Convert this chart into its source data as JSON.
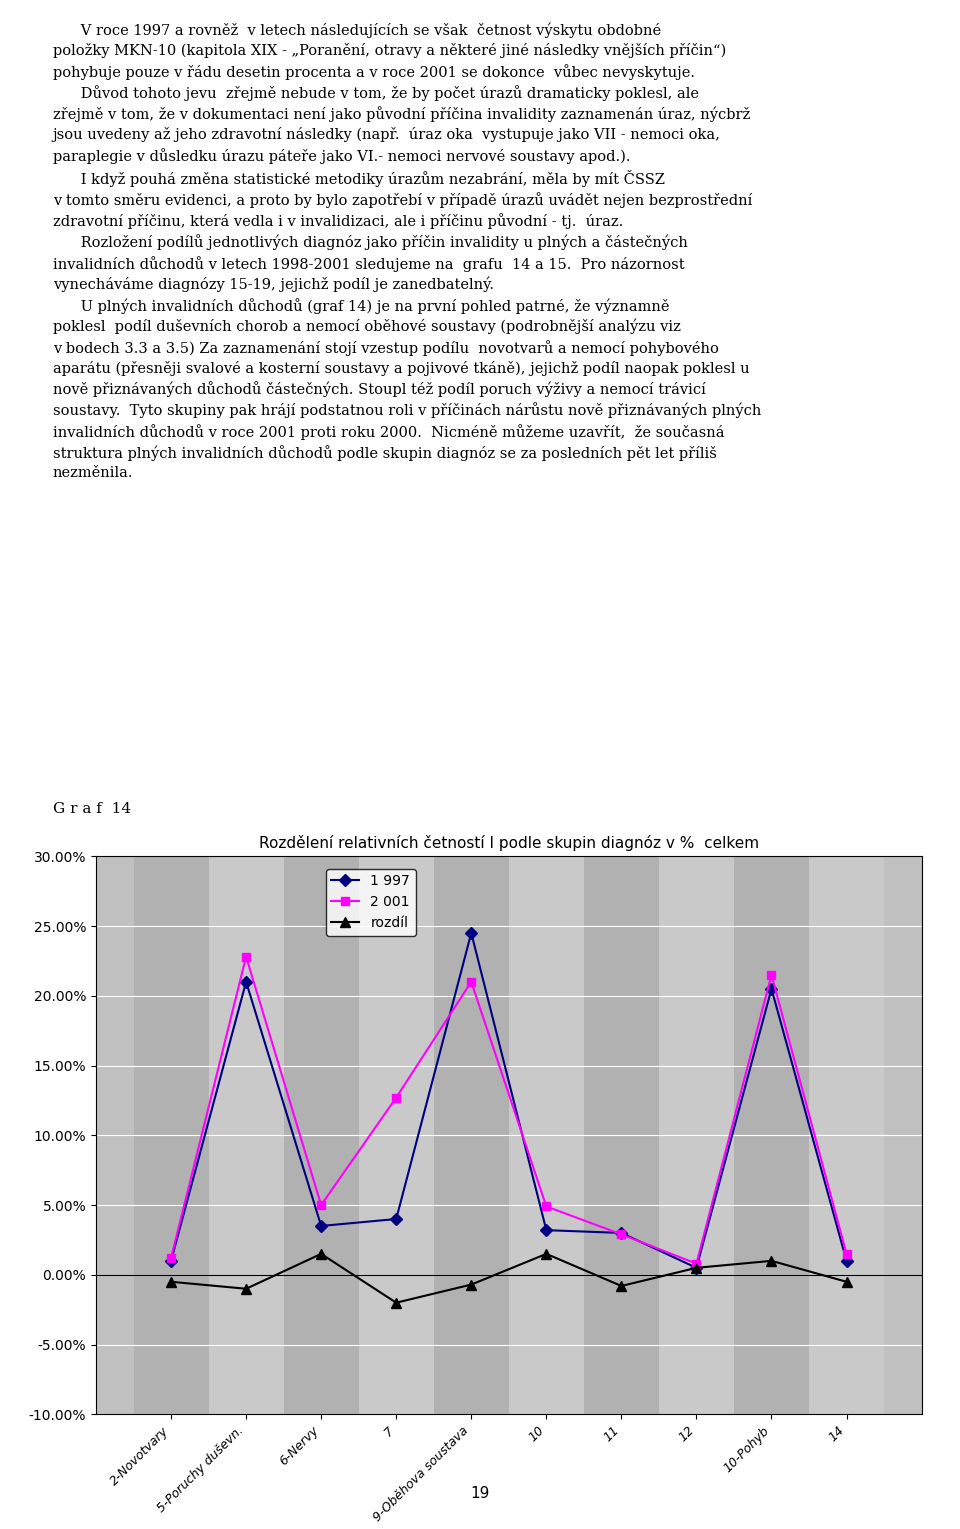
{
  "title": "Rozdělení relativních četností I podle skupin diagnóz v %  celkem",
  "chart_title_fontsize": 11,
  "categories": [
    "2-Novotvary",
    "5-Poruchy duševn.",
    "6-Nervy",
    "7",
    "9-Oběhova soustava",
    "10",
    "11",
    "12",
    "10-Pohyb",
    "14"
  ],
  "series_1997": [
    0.01,
    0.21,
    0.035,
    0.04,
    0.245,
    0.032,
    0.03,
    0.005,
    0.205,
    0.01
  ],
  "series_2001": [
    0.012,
    0.228,
    0.05,
    0.127,
    0.21,
    0.049,
    0.029,
    0.008,
    0.215,
    0.015
  ],
  "series_rozdil": [
    -0.005,
    -0.01,
    0.015,
    -0.02,
    -0.007,
    0.015,
    -0.008,
    0.005,
    0.01,
    -0.005
  ],
  "legend_labels": [
    "1 997",
    "2 001",
    "rozdíl"
  ],
  "color_1997": "#000080",
  "color_2001": "#FF00FF",
  "color_rozdil": "#000000",
  "marker_1997": "D",
  "marker_2001": "s",
  "marker_rozdil": "^",
  "ylim_min": -0.1,
  "ylim_max": 0.3,
  "yticks": [
    -0.1,
    -0.05,
    0.0,
    0.05,
    0.1,
    0.15,
    0.2,
    0.25,
    0.3
  ],
  "background_color": "#C0C0C0",
  "grid_color": "#FFFFFF",
  "text_color": "#000000",
  "page_background": "#FFFFFF",
  "label_text": "G r a f  14",
  "page_number": "19",
  "para1": "     V roce 1997 a rovněž  v letech následujících se však  četnost výskytu obdobné položky MKN-10 (kapitola XIX -",
  "para1b": "„Poranění, otravy a některé jiné následky vnějších příčin“) pohybuje pouze v řádu desetin procenta a v roce 2001 se dokonce  vůbec nevyskytuje.",
  "para2": "     Důvod tohoto jevu  zřejmě nebude v tom, že by počet úrazů dramaticky poklesl, ale zřejmě v tom, že v dokumentaci není jako původní příčina invalidity zaznamenán úraz, nýcbrž jsou uvedeny až jeho zdravotní následky (např.  úraz oka  vystupuje jako VII - nemoci oka, paraplegie v důsledku úrazu páteře jako VI.- nemoci nervové soustavy apod.).",
  "para3": "     I když pouhá změna statistické metodiky úrazům nezabrání, měla by mít ČSSZ v tomto směru evidenci, a proto by bylo zapotřebí v případě úrazů uvádět nejen bezprostřední zdravotní příčinu, která vedla i v invalidizaci, ale i příčinu původní - tj.  úraz.",
  "para4": "     Rozložení podílů jednotlivých diagnóz jako příčin invalidity u plných a částečných invalidních důchodů v letech 1998-2001 sledujeme na  grafu  14 a 15.  Pro názornost vynecháváme diagnózy 15-19, jejichž podíl je zanedbatelný.",
  "para5": "     U plných invalidních důchodů (graf 14) je na první pohled patrné, že významně poklesl  podíl duševních chorob a nemocí oběhové soustavy (podrobnější analýzu viz v bodech 3.3 a 3.5) Za zaznamenání stojí vzestup podílu  novotvarů a nemocí pohybového aparátu (přesněji svalové a kosterní soustavy a pojivové tkáně), jejichž podíl naopak poklesl u nově přiznávaných důchodů částečných. Stoupl též podíl poruch výživy a nemocí trávicí soustavy.  Tyto skupiny pak hrájí podstatnou roli v příčinách nárůstu nově přiznávaných plných invalidních důchodů v roce 2001 proti roku 2000.  Nicméně můžeme uzavřít,  že současná struktura plných invalidních důchodů podle skupin diagnóz se za posledních pět let příliš nezměnila."
}
